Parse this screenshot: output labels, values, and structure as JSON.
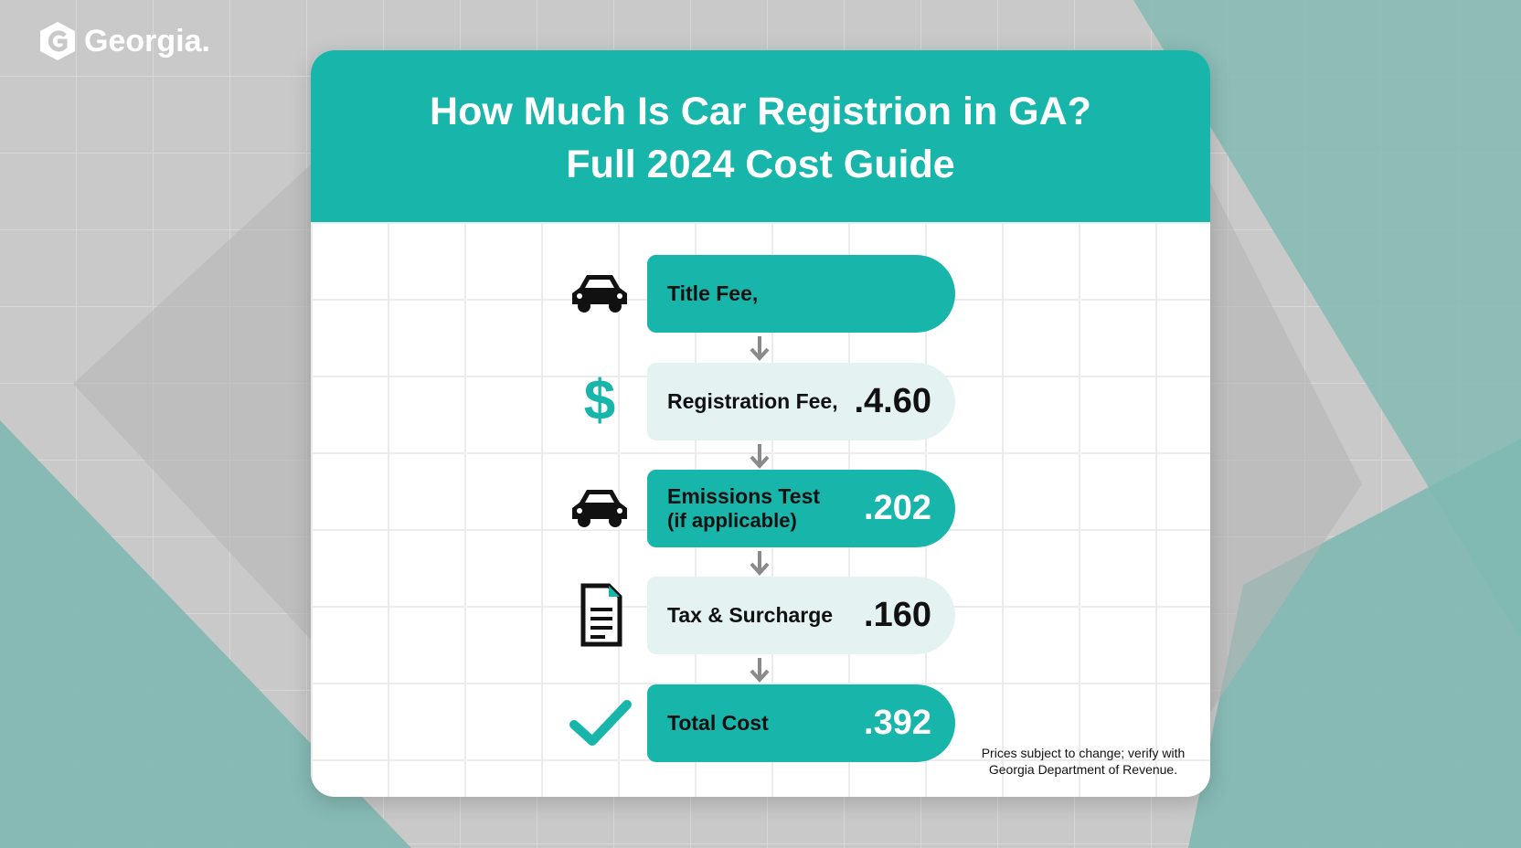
{
  "logo": {
    "text": "Georgia."
  },
  "header": {
    "title_line1": "How Much Is Car Registrion in GA?",
    "title_line2": "Full 2024 Cost Guide"
  },
  "steps": [
    {
      "label": "Title Fee,"
    },
    {
      "label": "Registration Fee,",
      "value": ".4.60",
      "icon_text": "$"
    },
    {
      "label": "Emissions Test",
      "sublabel": "(if applicable)",
      "value": ".202"
    },
    {
      "label": "Tax & Surcharge",
      "value": ".160"
    },
    {
      "label": "Total Cost",
      "value": ".392"
    }
  ],
  "footnote": {
    "line1": "Prices subject to change; verify with",
    "line2": "Georgia Department of Revenue."
  }
}
